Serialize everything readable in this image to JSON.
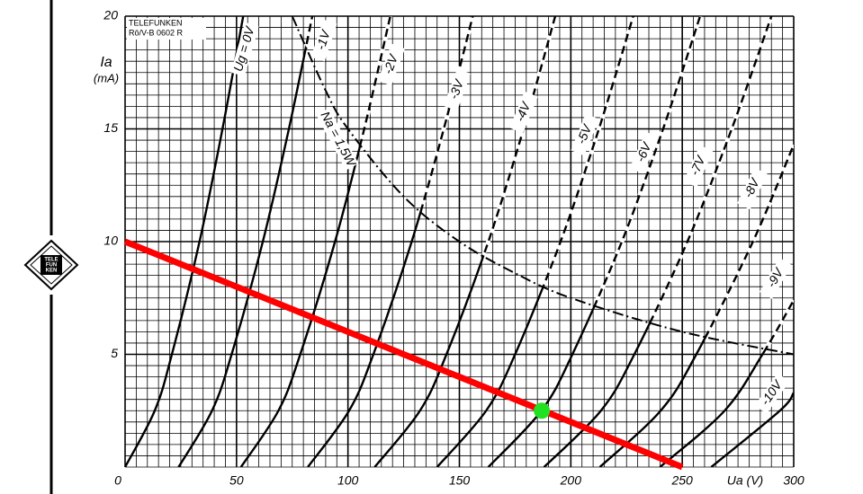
{
  "header": {
    "brand": "TELEFUNKEN",
    "code": "Rö/V-B 0602 R"
  },
  "logo": [
    "TELE",
    "FUN",
    "KEN"
  ],
  "chart_data": {
    "type": "line",
    "xlabel": "Ua (V)",
    "ylabel": "Ia",
    "yunit": "(mA)",
    "xlim": [
      0,
      300
    ],
    "ylim": [
      0,
      20
    ],
    "xticks": [
      0,
      50,
      100,
      150,
      200,
      250,
      300
    ],
    "yticks": [
      5,
      10,
      15,
      20
    ],
    "grid": true,
    "minor_grid": {
      "x": 5,
      "y": 0.5
    },
    "series": [
      {
        "name": "Ug = 0V",
        "color": "#000000",
        "x": [
          0,
          13.3,
          21,
          33.4,
          43.7,
          53
        ],
        "values": [
          0,
          2.5,
          5,
          10,
          15,
          20
        ]
      },
      {
        "name": "-1V",
        "color": "#000000",
        "x": [
          24,
          39,
          47.8,
          61.8,
          73.5,
          84
        ],
        "values": [
          0,
          2.5,
          5,
          10,
          15,
          20
        ]
      },
      {
        "name": "-2V",
        "color": "#000000",
        "x": [
          52,
          68.8,
          78.6,
          94.2,
          107.3,
          119
        ],
        "values": [
          0,
          2.5,
          5,
          10,
          15,
          20
        ]
      },
      {
        "name": "-3V",
        "color": "#000000",
        "x": [
          82,
          100.5,
          111.4,
          128.6,
          143,
          156
        ],
        "values": [
          0,
          2.5,
          5,
          10,
          15,
          20
        ]
      },
      {
        "name": "-4V",
        "color": "#000000",
        "x": [
          112,
          132.3,
          144.2,
          163,
          178.8,
          193
        ],
        "values": [
          0,
          2.5,
          5,
          10,
          15,
          20
        ]
      },
      {
        "name": "-5V",
        "color": "#000000",
        "x": [
          140,
          162,
          175,
          195.4,
          212.6,
          228
        ],
        "values": [
          0,
          2.5,
          5,
          10,
          15,
          20
        ]
      },
      {
        "name": "-6V",
        "color": "#000000",
        "x": [
          163,
          186.8,
          200.7,
          222.9,
          241.4,
          258
        ],
        "values": [
          0,
          2.5,
          5,
          10,
          15,
          20
        ]
      },
      {
        "name": "-7V",
        "color": "#000000",
        "x": [
          188,
          213.5,
          228.5,
          252.3,
          272.2,
          290
        ],
        "values": [
          0,
          2.5,
          5,
          10,
          15,
          20
        ]
      },
      {
        "name": "-8V",
        "color": "#000000",
        "x": [
          213,
          240.3,
          256.3,
          281.7,
          300
        ],
        "values": [
          0,
          2.5,
          5,
          10,
          14.3
        ]
      },
      {
        "name": "-9V",
        "color": "#000000",
        "x": [
          240,
          269,
          286,
          300
        ],
        "values": [
          0,
          2.5,
          5,
          7.4
        ]
      },
      {
        "name": "-10V",
        "color": "#000000",
        "x": [
          263,
          293.8,
          300
        ],
        "values": [
          0,
          2.5,
          3.3
        ]
      }
    ],
    "power_limit": {
      "name": "Na = 1,5W",
      "color": "#000000",
      "x": [
        75,
        90,
        100,
        125,
        150,
        175,
        200,
        250,
        300
      ],
      "values": [
        20,
        16.7,
        15,
        12,
        10,
        8.6,
        7.5,
        6,
        5
      ]
    },
    "load_line": {
      "color": "#ff0000",
      "x": [
        0,
        250
      ],
      "values": [
        10,
        0
      ]
    },
    "operating_point": {
      "color": "#22e022",
      "x": 187,
      "value": 2.5
    }
  }
}
